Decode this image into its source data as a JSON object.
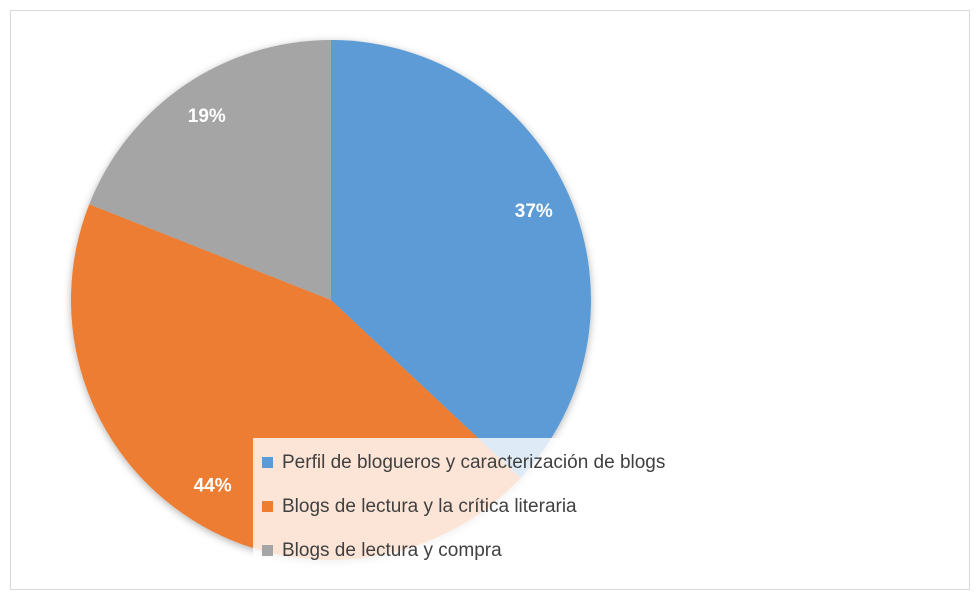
{
  "chart_data": {
    "type": "pie",
    "categories": [
      "Perfil de blogueros y caracterización de blogs",
      "Blogs de lectura y la crítica literaria",
      "Blogs de lectura y compra"
    ],
    "values": [
      37,
      44,
      19
    ],
    "value_labels": [
      "37%",
      "44%",
      "19%"
    ],
    "colors": [
      "#5b9bd5",
      "#ed7d31",
      "#a5a5a5"
    ],
    "legend": "bottom"
  }
}
